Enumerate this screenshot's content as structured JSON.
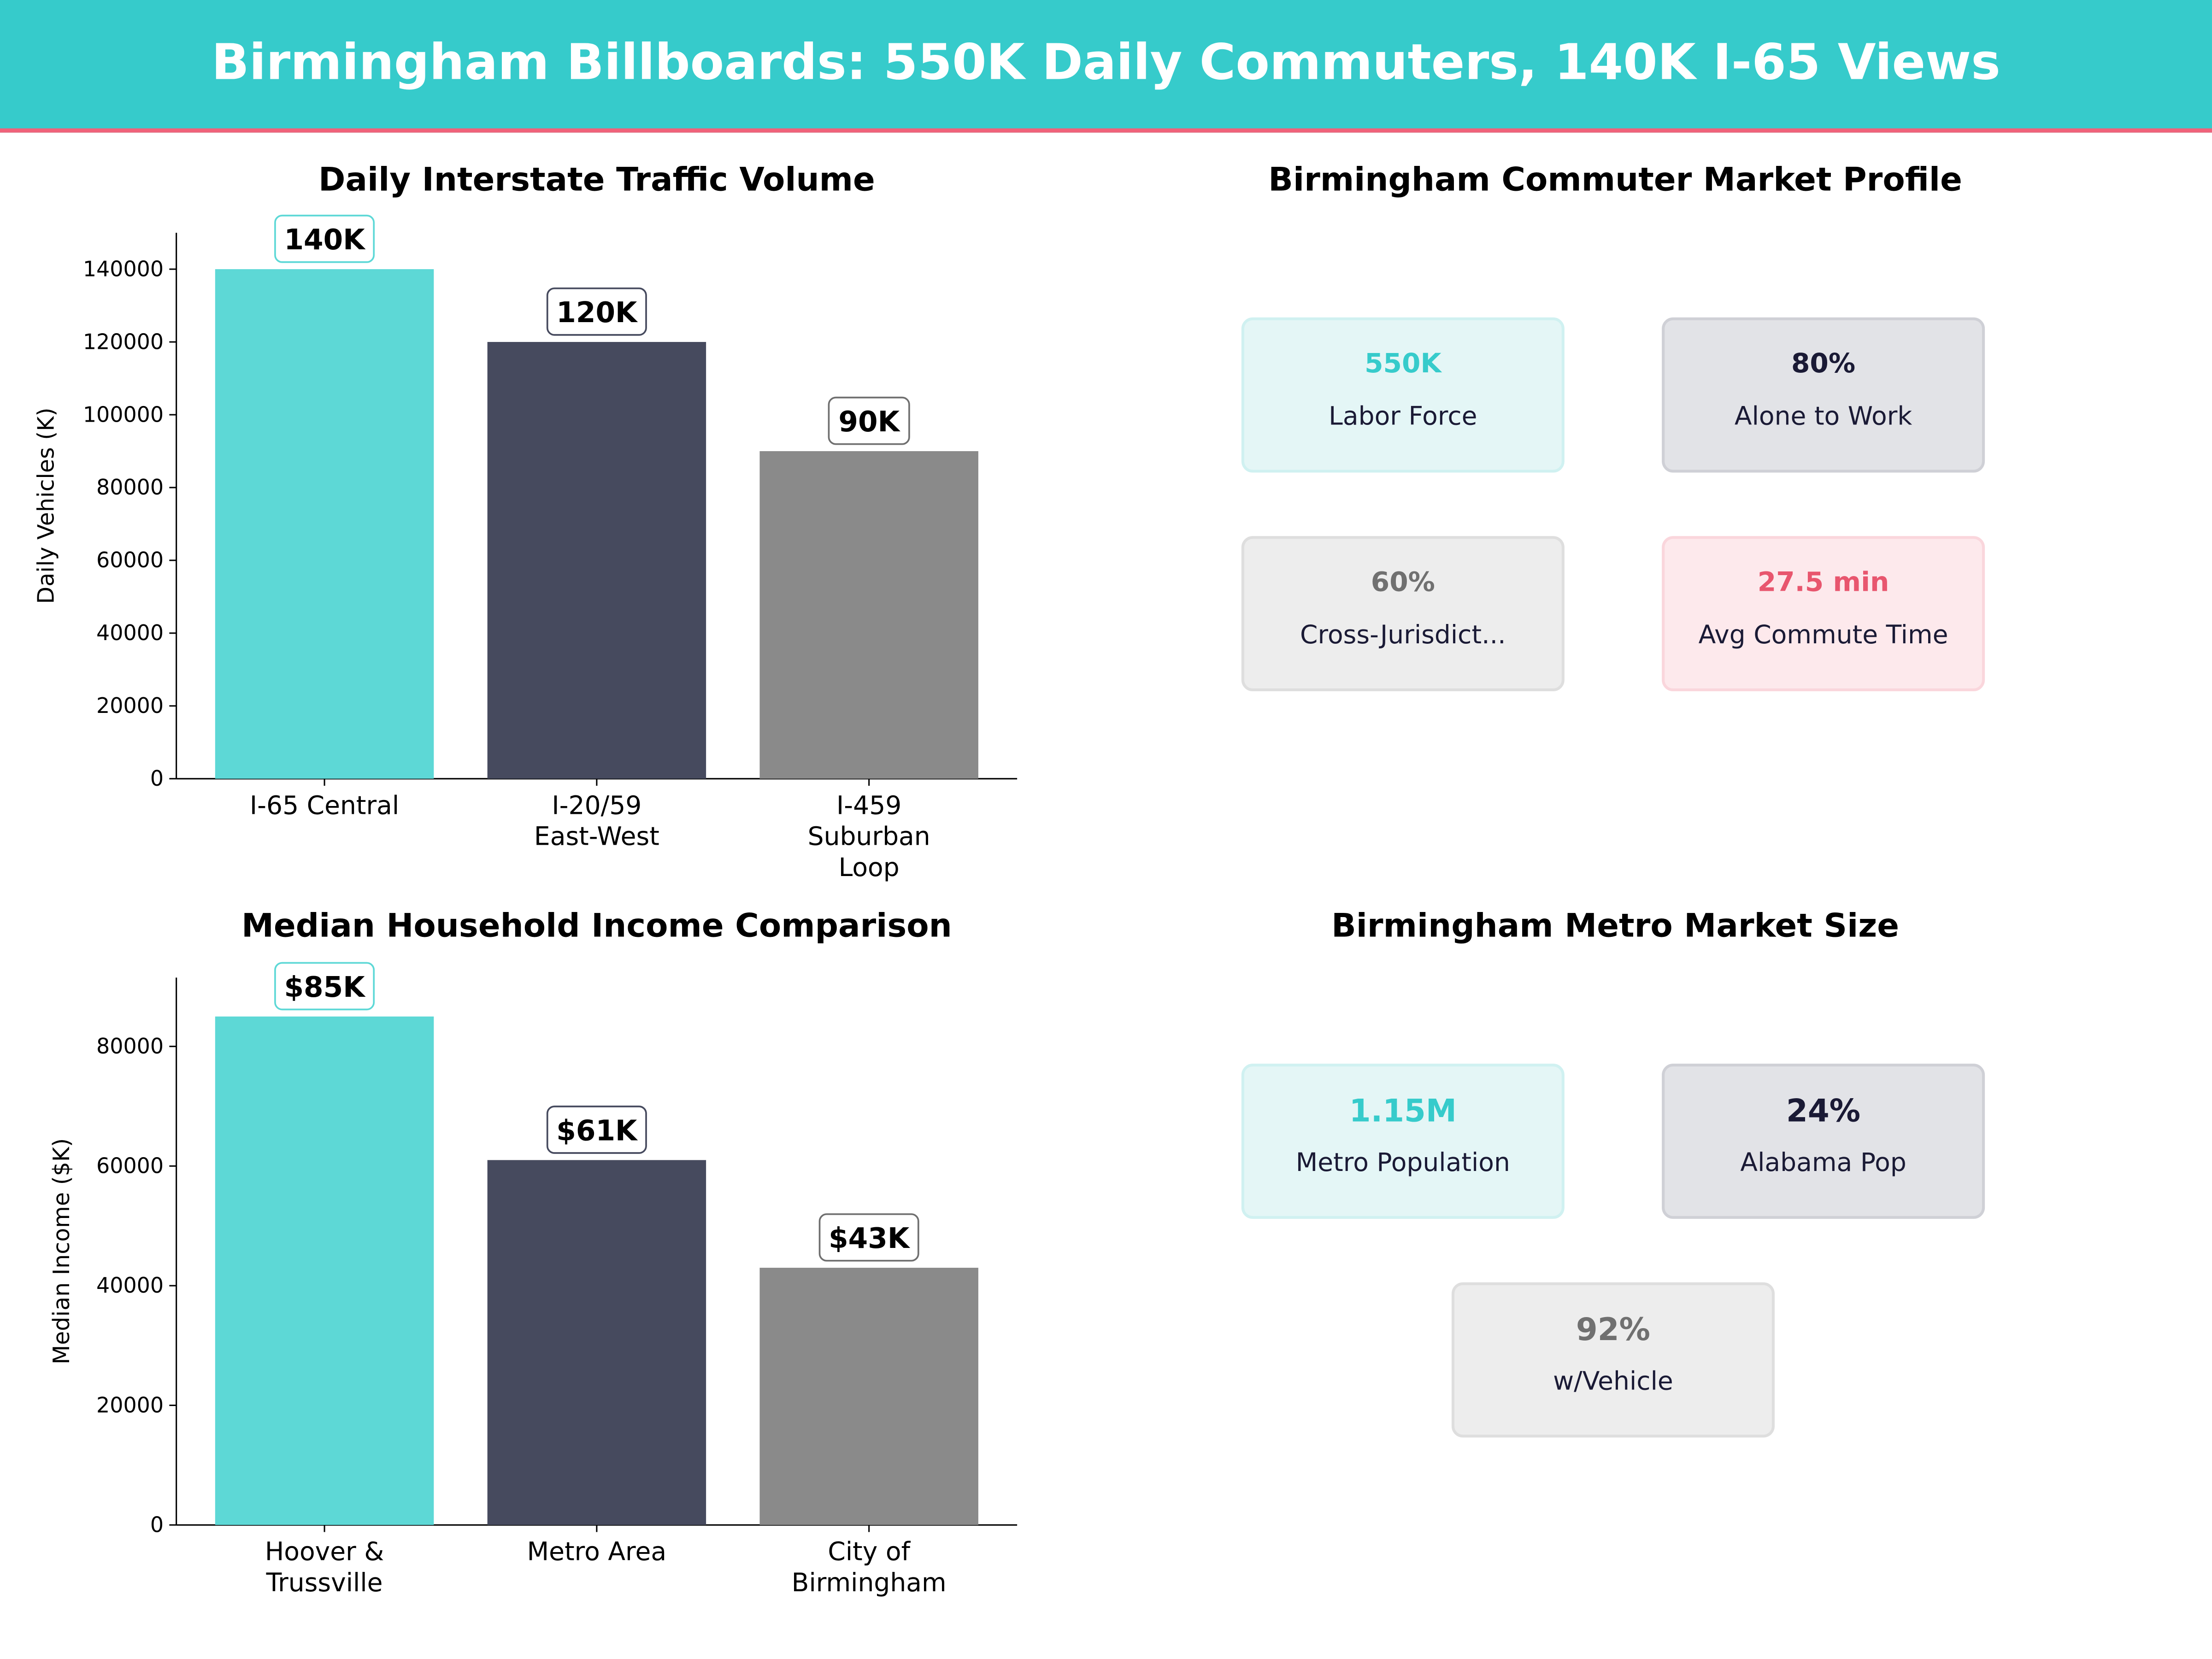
{
  "header": {
    "title": "Birmingham Billboards: 550K Daily Commuters, 140K I-65 Views"
  },
  "colors": {
    "teal": "#36cbcb",
    "navy": "#464a5e",
    "gray": "#8a8a8a",
    "pink": "#f0627a"
  },
  "chart_data": [
    {
      "type": "bar",
      "title": "Daily Interstate Traffic Volume",
      "xlabel": "",
      "ylabel": "Daily Vehicles (K)",
      "categories": [
        "I-65 Central",
        "I-20/59\nEast-West",
        "I-459\nSuburban\nLoop"
      ],
      "values": [
        140000,
        120000,
        90000
      ],
      "data_labels": [
        "140K",
        "120K",
        "90K"
      ],
      "bar_colors": [
        "#5dd8d6",
        "#464a5e",
        "#8a8a8a"
      ],
      "label_border_colors": [
        "#5dd8d6",
        "#464a5e",
        "#6f6f6f"
      ],
      "yticks": [
        0,
        20000,
        40000,
        60000,
        80000,
        100000,
        120000,
        140000
      ],
      "ylim": [
        0,
        150000
      ],
      "grid": false
    },
    {
      "type": "bar",
      "title": "Median Household Income Comparison",
      "xlabel": "",
      "ylabel": "Median Income ($K)",
      "categories": [
        "Hoover &\nTrussville",
        "Metro Area",
        "City of\nBirmingham"
      ],
      "values": [
        85000,
        61000,
        43000
      ],
      "data_labels": [
        "$85K",
        "$61K",
        "$43K"
      ],
      "bar_colors": [
        "#5dd8d6",
        "#464a5e",
        "#8a8a8a"
      ],
      "label_border_colors": [
        "#5dd8d6",
        "#464a5e",
        "#6f6f6f"
      ],
      "yticks": [
        0,
        20000,
        40000,
        60000,
        80000
      ],
      "ylim": [
        0,
        91500
      ],
      "grid": false
    }
  ],
  "profile": {
    "title": "Birmingham Commuter Market Profile",
    "cards": [
      {
        "value": "550K",
        "label": "Labor Force",
        "color": "#36cbcb",
        "bg": "#e4f6f6",
        "border": "#d0f1f1"
      },
      {
        "value": "80%",
        "label": "Alone to Work",
        "color": "#1a1a35",
        "bg": "#e2e3e7",
        "border": "#cfd0d6"
      },
      {
        "value": "60%",
        "label": "Cross-Jurisdict...",
        "color": "#707070",
        "bg": "#ededed",
        "border": "#dedede"
      },
      {
        "value": "27.5 min",
        "label": "Avg Commute Time",
        "color": "#e8566e",
        "bg": "#fde9ec",
        "border": "#fad6dc"
      }
    ]
  },
  "market": {
    "title": "Birmingham Metro Market Size",
    "cards": [
      {
        "value": "1.15M",
        "label": "Metro Population",
        "color": "#36cbcb",
        "bg": "#e4f6f6",
        "border": "#d0f1f1"
      },
      {
        "value": "24%",
        "label": "Alabama Pop",
        "color": "#1a1a35",
        "bg": "#e2e3e7",
        "border": "#cfd0d6"
      },
      {
        "value": "92%",
        "label": "w/Vehicle",
        "color": "#707070",
        "bg": "#ededed",
        "border": "#dedede"
      }
    ]
  }
}
